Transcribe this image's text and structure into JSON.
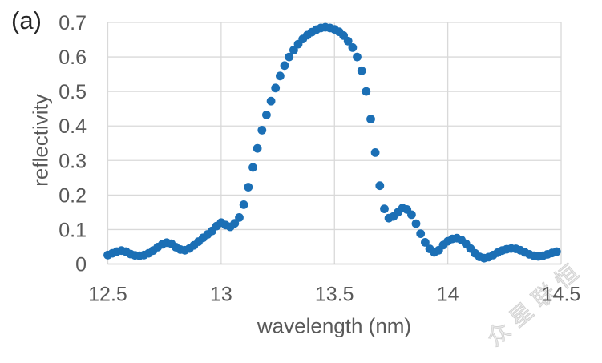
{
  "panel_label": "(a)",
  "watermark": {
    "text": "众星联恒",
    "color": "#ececec"
  },
  "chart_data": {
    "type": "scatter",
    "title": "",
    "xlabel": "wavelength (nm)",
    "ylabel": "reflectivity",
    "xlim": [
      12.5,
      14.5
    ],
    "ylim": [
      0,
      0.7
    ],
    "grid": true,
    "legend": false,
    "marker_color": "#1b6fb5",
    "gridline_color": "#d9d9d9",
    "axis_line_color": "#bfbfbf",
    "text_color": "#595959",
    "x_ticks": {
      "values": [
        12.5,
        13,
        13.5,
        14,
        14.5
      ],
      "labels": [
        "12.5",
        "13",
        "13.5",
        "14",
        "14.5"
      ]
    },
    "y_ticks": {
      "values": [
        0,
        0.1,
        0.2,
        0.3,
        0.4,
        0.5,
        0.6,
        0.7
      ],
      "labels": [
        "0",
        "0.1",
        "0.2",
        "0.3",
        "0.4",
        "0.5",
        "0.6",
        "0.7"
      ]
    },
    "x": [
      12.5,
      12.52,
      12.54,
      12.56,
      12.58,
      12.6,
      12.62,
      12.64,
      12.66,
      12.68,
      12.7,
      12.72,
      12.74,
      12.76,
      12.78,
      12.8,
      12.82,
      12.84,
      12.86,
      12.88,
      12.9,
      12.92,
      12.94,
      12.96,
      12.98,
      13.0,
      13.02,
      13.04,
      13.06,
      13.08,
      13.1,
      13.12,
      13.14,
      13.16,
      13.18,
      13.2,
      13.22,
      13.24,
      13.26,
      13.28,
      13.3,
      13.32,
      13.34,
      13.36,
      13.38,
      13.4,
      13.42,
      13.44,
      13.46,
      13.48,
      13.5,
      13.52,
      13.54,
      13.56,
      13.58,
      13.6,
      13.62,
      13.64,
      13.66,
      13.68,
      13.7,
      13.72,
      13.74,
      13.76,
      13.78,
      13.8,
      13.82,
      13.84,
      13.86,
      13.88,
      13.9,
      13.92,
      13.94,
      13.96,
      13.98,
      14.0,
      14.02,
      14.04,
      14.06,
      14.08,
      14.1,
      14.12,
      14.14,
      14.16,
      14.18,
      14.2,
      14.22,
      14.24,
      14.26,
      14.28,
      14.3,
      14.32,
      14.34,
      14.36,
      14.38,
      14.4,
      14.42,
      14.44,
      14.46,
      14.48
    ],
    "y": [
      0.026,
      0.031,
      0.036,
      0.039,
      0.036,
      0.029,
      0.025,
      0.024,
      0.026,
      0.031,
      0.039,
      0.049,
      0.057,
      0.062,
      0.059,
      0.049,
      0.042,
      0.04,
      0.045,
      0.054,
      0.065,
      0.076,
      0.086,
      0.096,
      0.11,
      0.12,
      0.113,
      0.108,
      0.118,
      0.135,
      0.172,
      0.223,
      0.28,
      0.335,
      0.388,
      0.432,
      0.472,
      0.51,
      0.545,
      0.575,
      0.6,
      0.62,
      0.637,
      0.652,
      0.663,
      0.672,
      0.679,
      0.684,
      0.686,
      0.684,
      0.68,
      0.673,
      0.662,
      0.646,
      0.627,
      0.6,
      0.56,
      0.5,
      0.42,
      0.323,
      0.227,
      0.16,
      0.133,
      0.138,
      0.15,
      0.162,
      0.158,
      0.143,
      0.117,
      0.088,
      0.063,
      0.044,
      0.034,
      0.04,
      0.055,
      0.066,
      0.073,
      0.075,
      0.07,
      0.059,
      0.045,
      0.031,
      0.021,
      0.017,
      0.02,
      0.026,
      0.033,
      0.039,
      0.043,
      0.045,
      0.044,
      0.04,
      0.034,
      0.028,
      0.024,
      0.022,
      0.024,
      0.028,
      0.032,
      0.036
    ]
  }
}
